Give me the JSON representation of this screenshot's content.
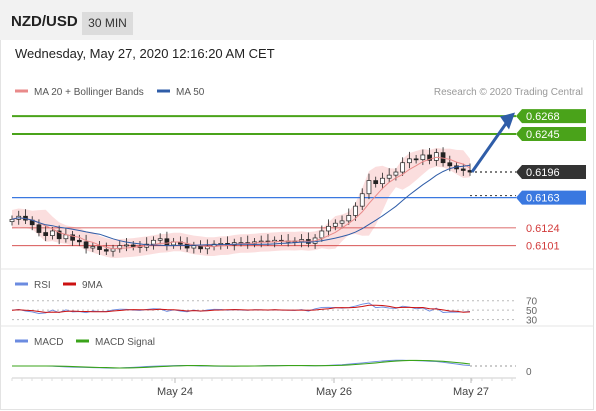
{
  "header": {
    "pair": "NZD/USD",
    "timeframe": "30 MIN"
  },
  "datetime": "Wednesday, May 27, 2020 12:16:20 AM CET",
  "legend": {
    "ma20": "MA 20 + Bollinger Bands",
    "ma50": "MA 50",
    "credit": "Research © 2020 Trading Central"
  },
  "rsi_legend": {
    "rsi": "RSI",
    "ma9": "9MA"
  },
  "macd_legend": {
    "macd": "MACD",
    "signal": "MACD Signal"
  },
  "colors": {
    "resistance": "#4aa31a",
    "current": "#333333",
    "pivot": "#3a78e0",
    "support": "#d23b3b",
    "ma20": "#e98a8a",
    "ma50": "#2f5da8",
    "bands": "#f9d3d3",
    "arrow": "#2f5da8",
    "rsi": "#6b8be0",
    "ma9": "#cc1111",
    "macd": "#6b8be0",
    "macd_signal": "#3aa31a"
  },
  "chart_data": [
    {
      "type": "candlestick",
      "title": "NZD/USD",
      "ylim": [
        0.608,
        0.6285
      ],
      "levels": [
        {
          "label": "0.6268",
          "value": 0.6268,
          "kind": "resistance"
        },
        {
          "label": "0.6245",
          "value": 0.6245,
          "kind": "resistance"
        },
        {
          "label": "0.6196",
          "value": 0.6196,
          "kind": "current"
        },
        {
          "label": "0.6163",
          "value": 0.6163,
          "kind": "pivot"
        },
        {
          "label": "0.6124",
          "value": 0.6124,
          "kind": "support"
        },
        {
          "label": "0.6101",
          "value": 0.6101,
          "kind": "support"
        }
      ],
      "x_ticks": [
        "May 24",
        "May 26",
        "May 27"
      ],
      "series": [
        {
          "name": "MA 20 + Bollinger Bands",
          "kind": "ma20"
        },
        {
          "name": "MA 50",
          "kind": "ma50"
        }
      ],
      "close_path": [
        0.6135,
        0.6139,
        0.6134,
        0.6128,
        0.6118,
        0.6114,
        0.612,
        0.611,
        0.6115,
        0.6108,
        0.6106,
        0.6098,
        0.61,
        0.6096,
        0.6094,
        0.6097,
        0.6101,
        0.6102,
        0.61,
        0.6099,
        0.6103,
        0.6108,
        0.611,
        0.6102,
        0.6106,
        0.6103,
        0.6098,
        0.6101,
        0.6097,
        0.61,
        0.6103,
        0.6104,
        0.6102,
        0.6105,
        0.6105,
        0.6104,
        0.6106,
        0.6107,
        0.6106,
        0.6108,
        0.6107,
        0.6107,
        0.6106,
        0.6109,
        0.6104,
        0.6111,
        0.612,
        0.6126,
        0.613,
        0.6133,
        0.614,
        0.6152,
        0.6168,
        0.6185,
        0.6181,
        0.6188,
        0.6192,
        0.6196,
        0.6208,
        0.6213,
        0.6212,
        0.6218,
        0.6211,
        0.6221,
        0.6208,
        0.6204,
        0.62,
        0.6198,
        0.6196
      ],
      "annotation": "projection arrow toward 0.6268"
    },
    {
      "type": "line",
      "title": "RSI",
      "ylim": [
        25,
        80
      ],
      "y_ticks": [
        70,
        50,
        30
      ],
      "series": [
        {
          "name": "RSI",
          "kind": "rsi"
        },
        {
          "name": "9MA",
          "kind": "ma9"
        }
      ]
    },
    {
      "type": "line",
      "title": "MACD",
      "y_ticks": [
        0
      ],
      "series": [
        {
          "name": "MACD",
          "kind": "macd"
        },
        {
          "name": "MACD Signal",
          "kind": "macd_signal"
        }
      ]
    }
  ]
}
